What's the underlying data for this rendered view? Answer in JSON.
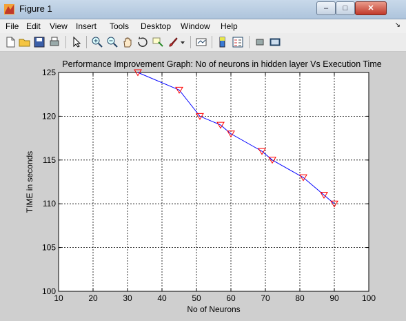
{
  "window": {
    "title": "Figure 1",
    "controls": {
      "minimize": "‒",
      "maximize": "□",
      "close": "✕"
    }
  },
  "menubar": {
    "items": [
      "File",
      "Edit",
      "View",
      "Insert",
      "Tools",
      "Desktop",
      "Window",
      "Help"
    ],
    "overflow": "↘"
  },
  "toolbar": {
    "icons": [
      "new-file-icon",
      "open-folder-icon",
      "save-icon",
      "print-icon",
      "pointer-icon",
      "zoom-in-icon",
      "zoom-out-icon",
      "pan-hand-icon",
      "rotate-3d-icon",
      "data-cursor-icon",
      "brush-icon",
      "brush-dropdown-icon",
      "link-plot-icon",
      "colorbar-icon",
      "legend-icon",
      "hide-plot-tools-icon",
      "show-plot-tools-icon"
    ]
  },
  "colors": {
    "line": "#0000ff",
    "marker": "#ff0000",
    "axes_bg": "#ffffff",
    "figure_bg": "#cfcfcf"
  },
  "chart_data": {
    "type": "line",
    "title": "Performance Improvement Graph: No of neurons in hidden layer Vs Execution Time",
    "xlabel": "No of Neurons",
    "ylabel": "TIME in seconds",
    "xlim": [
      10,
      100
    ],
    "ylim": [
      100,
      125
    ],
    "xticks": [
      10,
      20,
      30,
      40,
      50,
      60,
      70,
      80,
      90,
      100
    ],
    "yticks": [
      100,
      105,
      110,
      115,
      120,
      125
    ],
    "grid": true,
    "marker": "triangle-down",
    "series": [
      {
        "x": [
          33,
          45,
          51,
          57,
          60,
          69,
          72,
          81,
          87,
          90
        ],
        "values": [
          125,
          123,
          120,
          119,
          118,
          116,
          115,
          113,
          111,
          110
        ]
      }
    ]
  }
}
